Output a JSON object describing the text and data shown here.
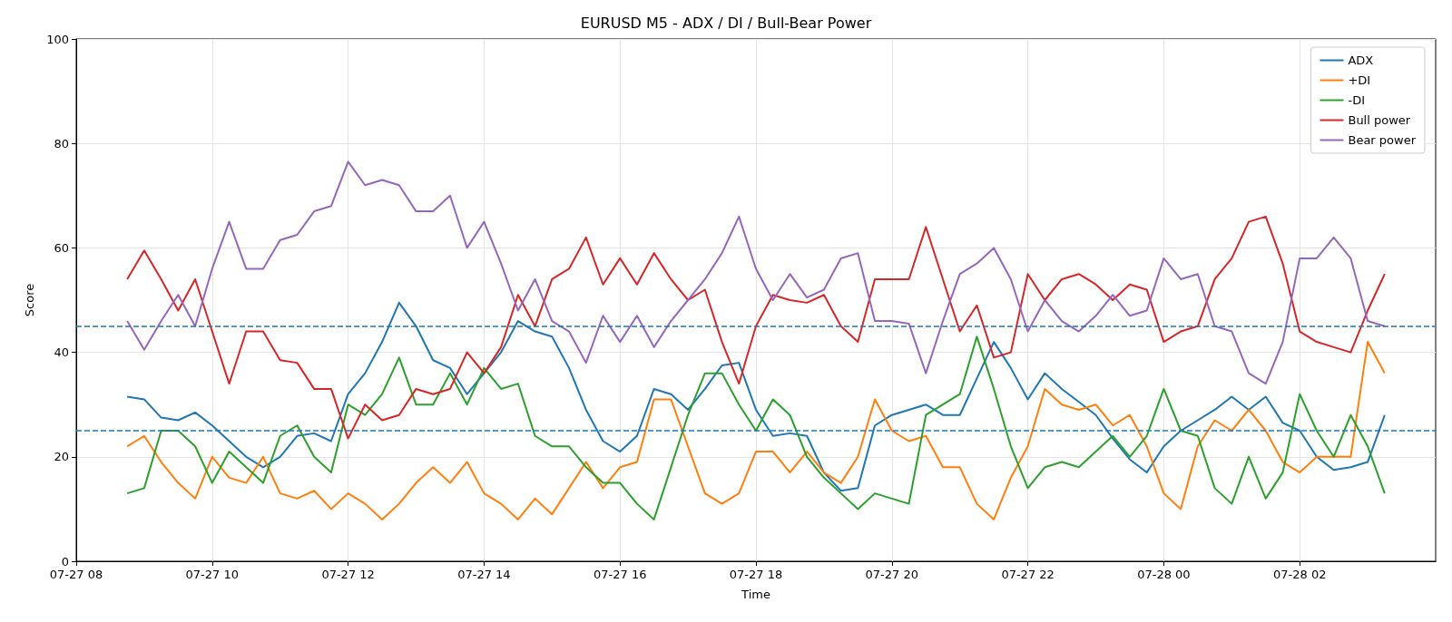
{
  "chart_data": {
    "type": "line",
    "title": "EURUSD M5 - ADX / DI / Bull-Bear Power",
    "xlabel": "Time",
    "ylabel": "Score",
    "categories": [
      "07-27 08",
      null,
      null,
      null,
      null,
      null,
      null,
      null,
      "07-27 10",
      null,
      null,
      null,
      null,
      null,
      null,
      null,
      "07-27 12",
      null,
      null,
      null,
      null,
      null,
      null,
      null,
      "07-27 14",
      null,
      null,
      null,
      null,
      null,
      null,
      null,
      "07-27 16",
      null,
      null,
      null,
      null,
      null,
      null,
      null,
      "07-27 18",
      null,
      null,
      null,
      null,
      null,
      null,
      null,
      "07-27 20",
      null,
      null,
      null,
      null,
      null,
      null,
      null,
      "07-27 22",
      null,
      null,
      null,
      null,
      null,
      null,
      null,
      "07-28 00",
      null,
      null,
      null,
      null,
      null,
      null,
      null,
      "07-28 02",
      null,
      null,
      null,
      null,
      null,
      null,
      null,
      null
    ],
    "series": [
      {
        "name": "ADX",
        "color": "#1f77b4",
        "values": [
          null,
          null,
          null,
          31.5,
          31,
          27.5,
          27,
          28.5,
          26,
          23,
          20,
          18,
          20,
          24,
          24.5,
          23,
          32,
          36,
          42,
          49.5,
          45,
          38.5,
          37,
          32,
          36,
          40,
          46,
          44,
          43,
          37,
          29,
          23,
          21,
          24,
          33,
          32,
          29,
          33,
          37.5,
          38,
          29,
          24,
          24.5,
          24,
          17,
          13.5,
          14,
          26,
          28,
          29,
          30,
          28,
          28,
          35,
          42,
          37,
          31,
          36,
          33,
          30.5,
          28,
          23.5,
          19.5,
          17,
          22,
          25,
          27,
          29,
          31.5,
          29,
          31.5,
          26.5,
          25,
          20,
          17.5,
          18,
          19,
          28,
          null,
          null,
          null
        ]
      },
      {
        "name": "+DI",
        "color": "#ff7f0e",
        "values": [
          null,
          null,
          null,
          22,
          24,
          19,
          15,
          12,
          20,
          16,
          15,
          20,
          13,
          12,
          13.5,
          10,
          13,
          11,
          8,
          11,
          15,
          18,
          15,
          19,
          13,
          11,
          8,
          12,
          9,
          14,
          19,
          14,
          18,
          19,
          31,
          31,
          22,
          13,
          11,
          13,
          21,
          21,
          17,
          21,
          17,
          15,
          20,
          31,
          25,
          23,
          24,
          18,
          18,
          11,
          8,
          16,
          22,
          33,
          30,
          29,
          30,
          26,
          28,
          22,
          13,
          10,
          22,
          27,
          25,
          29,
          25,
          19,
          17,
          20,
          20,
          20,
          42,
          36,
          null,
          null,
          null
        ]
      },
      {
        "name": "-DI",
        "color": "#2ca02c",
        "values": [
          null,
          null,
          null,
          13,
          14,
          25,
          25,
          22,
          15,
          21,
          18,
          15,
          24,
          26,
          20,
          17,
          30,
          28,
          32,
          39,
          30,
          30,
          36,
          30,
          37,
          33,
          34,
          24,
          22,
          22,
          18,
          15,
          15,
          11,
          8,
          18,
          28,
          36,
          36,
          30,
          25,
          31,
          28,
          20,
          16,
          13,
          10,
          13,
          12,
          11,
          28,
          30,
          32,
          43,
          33,
          22,
          14,
          18,
          19,
          18,
          21,
          24,
          20,
          24,
          33,
          25,
          24,
          14,
          11,
          20,
          12,
          17,
          32,
          25,
          20,
          28,
          22,
          13,
          null,
          null,
          null
        ]
      },
      {
        "name": "Bull power",
        "color": "#d62728",
        "values": [
          null,
          null,
          null,
          54,
          59.5,
          54,
          48,
          54,
          44,
          34,
          44,
          44,
          38.5,
          38,
          33,
          33,
          23.5,
          30,
          27,
          28,
          33,
          32,
          33,
          40,
          36,
          41,
          51,
          45,
          54,
          56,
          62,
          53,
          58,
          53,
          59,
          54,
          50,
          52,
          42,
          34,
          45,
          51,
          50,
          49.5,
          51,
          45,
          42,
          54,
          54,
          54,
          64,
          54,
          44,
          49,
          39,
          40,
          55,
          50,
          54,
          55,
          53,
          50,
          53,
          52,
          42,
          44,
          45,
          54,
          58,
          65,
          66,
          57,
          44,
          42,
          41,
          40,
          48,
          55,
          null,
          null,
          null
        ]
      },
      {
        "name": "Bear power",
        "color": "#9467bd",
        "values": [
          null,
          null,
          null,
          46,
          40.5,
          46,
          51,
          45,
          56,
          65,
          56,
          56,
          61.5,
          62.5,
          67,
          68,
          76.5,
          72,
          73,
          72,
          67,
          67,
          70,
          60,
          65,
          57,
          48,
          54,
          46,
          44,
          38,
          47,
          42,
          47,
          41,
          46,
          50,
          54,
          59,
          66,
          56,
          50,
          55,
          50.5,
          52,
          58,
          59,
          46,
          46,
          45.5,
          36,
          46,
          55,
          57,
          60,
          54,
          44,
          50,
          46,
          44,
          47,
          51,
          47,
          48,
          58,
          54,
          55,
          45,
          44,
          36,
          34,
          42,
          58,
          58,
          62,
          58,
          46,
          45,
          null,
          null,
          null
        ]
      }
    ],
    "ref_lines": [
      {
        "axis": "y",
        "value": 45,
        "color": "#1f77b4",
        "line_style": "dashed"
      },
      {
        "axis": "y",
        "value": 25,
        "color": "#1f77b4",
        "line_style": "dashed"
      }
    ],
    "ylim": [
      0,
      100
    ],
    "yticks": [
      0,
      20,
      40,
      60,
      80,
      100
    ],
    "grid": true,
    "legend": "top right",
    "marker": "none",
    "line_style": "solid"
  }
}
